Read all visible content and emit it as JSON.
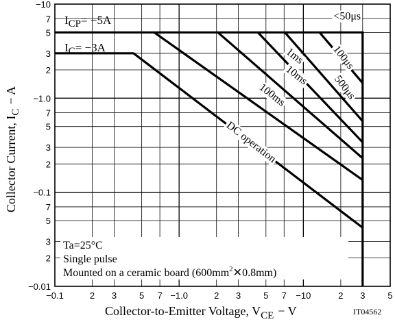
{
  "chart_data": {
    "type": "line",
    "title": "",
    "xlabel": "Collector-to-Emitter Voltage, V",
    "xlabel_sub": "CE",
    "xlabel_unit": "−  V",
    "ylabel": "Collector Current, I",
    "ylabel_sub": "C",
    "ylabel_unit": "−  A",
    "x_scale": "log",
    "y_scale": "log",
    "xlim": [
      0.1,
      50
    ],
    "ylim": [
      0.01,
      10
    ],
    "grid": true,
    "x_tick_labels": [
      {
        "v": 0.1,
        "t": "−0.1"
      },
      {
        "v": 0.2,
        "t": "2"
      },
      {
        "v": 0.3,
        "t": "3"
      },
      {
        "v": 0.5,
        "t": "5"
      },
      {
        "v": 0.7,
        "t": "7"
      },
      {
        "v": 1,
        "t": "−1.0"
      },
      {
        "v": 2,
        "t": "2"
      },
      {
        "v": 3,
        "t": "3"
      },
      {
        "v": 5,
        "t": "5"
      },
      {
        "v": 7,
        "t": "7"
      },
      {
        "v": 10,
        "t": "−10"
      },
      {
        "v": 20,
        "t": "2"
      },
      {
        "v": 30,
        "t": "3"
      },
      {
        "v": 50,
        "t": "5"
      }
    ],
    "y_tick_labels": [
      {
        "v": 10,
        "t": "−10"
      },
      {
        "v": 7,
        "t": "7"
      },
      {
        "v": 5,
        "t": "5"
      },
      {
        "v": 3,
        "t": "3"
      },
      {
        "v": 2,
        "t": "2"
      },
      {
        "v": 1,
        "t": "−1.0"
      },
      {
        "v": 0.7,
        "t": "7"
      },
      {
        "v": 0.5,
        "t": "5"
      },
      {
        "v": 0.3,
        "t": "3"
      },
      {
        "v": 0.2,
        "t": "2"
      },
      {
        "v": 0.1,
        "t": "−0.1"
      },
      {
        "v": 0.07,
        "t": "7"
      },
      {
        "v": 0.05,
        "t": "5"
      },
      {
        "v": 0.03,
        "t": "3"
      },
      {
        "v": 0.02,
        "t": "2"
      },
      {
        "v": 0.01,
        "t": "−0.01"
      }
    ],
    "series": [
      {
        "name": "<50μs",
        "x": [
          0.1,
          30,
          30
        ],
        "y": [
          5,
          5,
          0.01
        ]
      },
      {
        "name": "100μs",
        "x": [
          13.5,
          30
        ],
        "y": [
          5,
          1.45
        ]
      },
      {
        "name": "500μs",
        "x": [
          7.1,
          30
        ],
        "y": [
          5,
          0.57
        ]
      },
      {
        "name": "1ms",
        "x": [
          4.3,
          30
        ],
        "y": [
          5,
          0.34
        ]
      },
      {
        "name": "10ms",
        "x": [
          2.05,
          30
        ],
        "y": [
          5,
          0.23
        ]
      },
      {
        "name": "100ms",
        "x": [
          0.63,
          30
        ],
        "y": [
          5,
          0.135
        ]
      },
      {
        "name": "DC operation",
        "x": [
          0.1,
          0.43,
          30
        ],
        "y": [
          3,
          3,
          0.042
        ]
      }
    ],
    "curve_labels": [
      {
        "text": "<50μs",
        "x": 22.5,
        "y": 7.4,
        "angle": 0
      },
      {
        "text": "100μs",
        "x": 21.0,
        "y": 2.7,
        "angle": 52
      },
      {
        "text": "500μs",
        "x": 21.5,
        "y": 1.3,
        "angle": 52
      },
      {
        "text": "1ms",
        "x": 8.5,
        "y": 2.8,
        "angle": 38
      },
      {
        "text": "10ms",
        "x": 8.8,
        "y": 1.75,
        "angle": 38
      },
      {
        "text": "100ms",
        "x": 5.6,
        "y": 1.08,
        "angle": 38
      },
      {
        "text": "DC operation",
        "x": 3.8,
        "y": 0.34,
        "angle": 38
      }
    ],
    "annotations": {
      "icp": {
        "text": "I",
        "sub": "CP",
        "rest": "= −5A"
      },
      "ic": {
        "text": "I",
        "sub": "C",
        "rest": "= −3A"
      },
      "note1": "Ta=25°C",
      "note2": "Single pulse",
      "note3_a": "Mounted on a ceramic board (600mm",
      "note3_sup": "2",
      "note3_b": "✕0.8mm)"
    },
    "code": "IT04562"
  }
}
